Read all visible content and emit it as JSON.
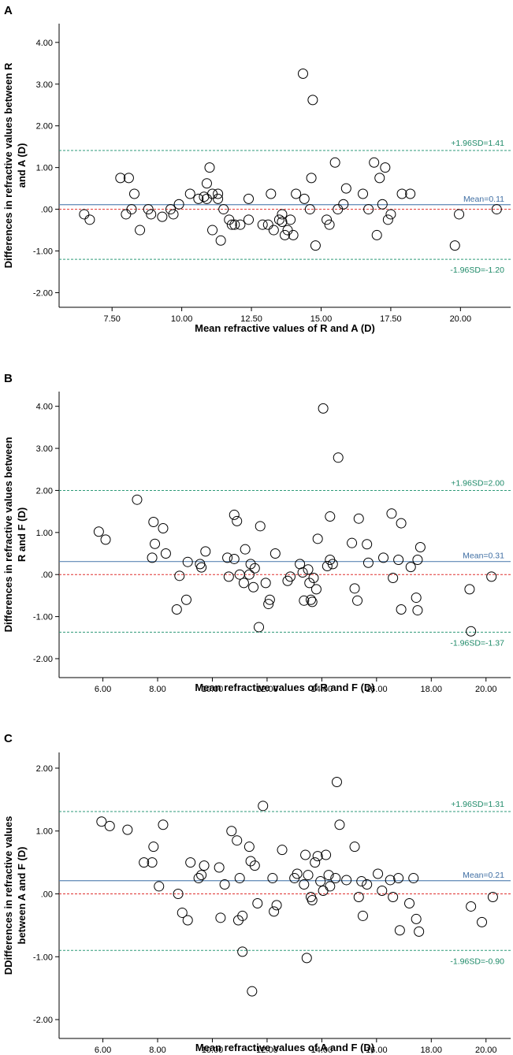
{
  "chart_data": [
    {
      "type": "scatter",
      "panel_label": "A",
      "xlabel": "Mean refractive values of  R and A (D)",
      "ylabel_lines": [
        "Differences in refractive values between R",
        "and A (D)"
      ],
      "xlim": [
        5.6,
        21.8
      ],
      "ylim": [
        -2.35,
        4.45
      ],
      "xticks": [
        7.5,
        10.0,
        12.5,
        15.0,
        17.5,
        20.0
      ],
      "xtick_labels": [
        "7.50",
        "10.00",
        "12.50",
        "15.00",
        "17.50",
        "20.00"
      ],
      "yticks": [
        4,
        3,
        2,
        1,
        0,
        -1,
        -2
      ],
      "ytick_labels": [
        "4.00",
        "3.00",
        "2.00",
        "1.00",
        ".00",
        "-1.00",
        "-2.00"
      ],
      "mean": 0.11,
      "upper": 1.41,
      "lower": -1.2,
      "mean_label": "Mean=0.11",
      "upper_label": "+1.96SD=1.41",
      "lower_label": "-1.96SD=-1.20",
      "points": [
        [
          6.5,
          -0.12
        ],
        [
          6.7,
          -0.25
        ],
        [
          7.8,
          0.75
        ],
        [
          8.0,
          -0.12
        ],
        [
          8.1,
          0.75
        ],
        [
          8.2,
          0.0
        ],
        [
          8.3,
          0.37
        ],
        [
          8.5,
          -0.5
        ],
        [
          8.8,
          0.0
        ],
        [
          8.9,
          -0.12
        ],
        [
          9.3,
          -0.18
        ],
        [
          9.6,
          0.0
        ],
        [
          9.7,
          -0.12
        ],
        [
          9.9,
          0.12
        ],
        [
          10.3,
          0.37
        ],
        [
          10.6,
          0.25
        ],
        [
          10.8,
          0.3
        ],
        [
          10.9,
          0.25
        ],
        [
          10.9,
          0.62
        ],
        [
          11.0,
          1.0
        ],
        [
          11.1,
          0.37
        ],
        [
          11.1,
          -0.5
        ],
        [
          11.3,
          0.37
        ],
        [
          11.3,
          0.25
        ],
        [
          11.4,
          -0.75
        ],
        [
          11.5,
          0.0
        ],
        [
          11.7,
          -0.25
        ],
        [
          11.8,
          -0.37
        ],
        [
          11.9,
          -0.37
        ],
        [
          12.1,
          -0.37
        ],
        [
          12.4,
          0.25
        ],
        [
          12.4,
          -0.25
        ],
        [
          12.9,
          -0.37
        ],
        [
          13.1,
          -0.37
        ],
        [
          13.2,
          0.37
        ],
        [
          13.3,
          -0.5
        ],
        [
          13.5,
          -0.25
        ],
        [
          13.6,
          -0.12
        ],
        [
          13.6,
          -0.3
        ],
        [
          13.7,
          -0.62
        ],
        [
          13.8,
          -0.5
        ],
        [
          13.9,
          -0.25
        ],
        [
          14.0,
          -0.62
        ],
        [
          14.1,
          0.37
        ],
        [
          14.35,
          3.25
        ],
        [
          14.4,
          0.25
        ],
        [
          14.6,
          0.0
        ],
        [
          14.65,
          0.75
        ],
        [
          14.7,
          2.62
        ],
        [
          14.8,
          -0.87
        ],
        [
          15.2,
          -0.25
        ],
        [
          15.3,
          -0.37
        ],
        [
          15.5,
          1.12
        ],
        [
          15.6,
          0.0
        ],
        [
          15.8,
          0.12
        ],
        [
          15.9,
          0.5
        ],
        [
          16.5,
          0.37
        ],
        [
          16.7,
          0.0
        ],
        [
          16.9,
          1.12
        ],
        [
          17.0,
          -0.62
        ],
        [
          17.1,
          0.75
        ],
        [
          17.2,
          0.12
        ],
        [
          17.3,
          1.0
        ],
        [
          17.4,
          -0.25
        ],
        [
          17.5,
          -0.12
        ],
        [
          17.9,
          0.37
        ],
        [
          18.2,
          0.37
        ],
        [
          19.8,
          -0.87
        ],
        [
          19.95,
          -0.12
        ],
        [
          21.3,
          0.0
        ]
      ]
    },
    {
      "type": "scatter",
      "panel_label": "B",
      "xlabel": "Mean refractive values of  R and F (D)",
      "ylabel_lines": [
        "Differences in refractive values between",
        "R and F (D)"
      ],
      "xlim": [
        4.4,
        20.9
      ],
      "ylim": [
        -2.45,
        4.35
      ],
      "xticks": [
        6,
        8,
        10,
        12,
        14,
        16,
        18,
        20
      ],
      "xtick_labels": [
        "6.00",
        "8.00",
        "10.00",
        "12.00",
        "14.00",
        "16.00",
        "18.00",
        "20.00"
      ],
      "yticks": [
        4,
        3,
        2,
        1,
        0,
        -1,
        -2
      ],
      "ytick_labels": [
        "4.00",
        "3.00",
        "2.00",
        "1.00",
        ".00",
        "-1.00",
        "-2.00"
      ],
      "mean": 0.31,
      "upper": 2.0,
      "lower": -1.37,
      "mean_label": "Mean=0.31",
      "upper_label": "+1.96SD=2.00",
      "lower_label": "-1.96SD=-1.37",
      "points": [
        [
          5.85,
          1.02
        ],
        [
          6.1,
          0.83
        ],
        [
          7.25,
          1.78
        ],
        [
          7.8,
          0.4
        ],
        [
          7.85,
          1.25
        ],
        [
          7.9,
          0.73
        ],
        [
          8.2,
          1.1
        ],
        [
          8.3,
          0.5
        ],
        [
          8.7,
          -0.83
        ],
        [
          8.8,
          -0.03
        ],
        [
          9.1,
          0.3
        ],
        [
          9.05,
          -0.6
        ],
        [
          9.55,
          0.25
        ],
        [
          9.6,
          0.17
        ],
        [
          9.75,
          0.55
        ],
        [
          10.55,
          0.4
        ],
        [
          10.6,
          -0.05
        ],
        [
          10.8,
          0.37
        ],
        [
          10.8,
          1.42
        ],
        [
          10.9,
          1.27
        ],
        [
          11.0,
          0.0
        ],
        [
          11.15,
          -0.2
        ],
        [
          11.2,
          0.6
        ],
        [
          11.35,
          0.0
        ],
        [
          11.4,
          0.25
        ],
        [
          11.5,
          -0.3
        ],
        [
          11.55,
          0.15
        ],
        [
          11.75,
          1.15
        ],
        [
          11.7,
          -1.25
        ],
        [
          11.95,
          -0.2
        ],
        [
          12.05,
          -0.7
        ],
        [
          12.1,
          -0.6
        ],
        [
          12.3,
          0.5
        ],
        [
          12.75,
          -0.15
        ],
        [
          12.85,
          -0.05
        ],
        [
          13.2,
          0.25
        ],
        [
          13.3,
          0.05
        ],
        [
          13.35,
          -0.62
        ],
        [
          13.5,
          0.12
        ],
        [
          13.55,
          -0.2
        ],
        [
          13.6,
          -0.6
        ],
        [
          13.65,
          -0.65
        ],
        [
          13.7,
          -0.08
        ],
        [
          13.8,
          -0.35
        ],
        [
          13.85,
          0.85
        ],
        [
          14.05,
          3.95
        ],
        [
          14.2,
          0.2
        ],
        [
          14.3,
          1.38
        ],
        [
          14.3,
          0.35
        ],
        [
          14.4,
          0.25
        ],
        [
          14.6,
          2.78
        ],
        [
          15.1,
          0.75
        ],
        [
          15.2,
          -0.33
        ],
        [
          15.35,
          1.33
        ],
        [
          15.3,
          -0.62
        ],
        [
          15.65,
          0.72
        ],
        [
          15.7,
          0.28
        ],
        [
          16.25,
          0.4
        ],
        [
          16.55,
          1.45
        ],
        [
          16.6,
          -0.08
        ],
        [
          16.8,
          0.35
        ],
        [
          16.9,
          1.22
        ],
        [
          16.9,
          -0.83
        ],
        [
          17.25,
          0.18
        ],
        [
          17.45,
          -0.55
        ],
        [
          17.5,
          -0.85
        ],
        [
          17.5,
          0.35
        ],
        [
          17.6,
          0.65
        ],
        [
          19.4,
          -0.35
        ],
        [
          19.45,
          -1.35
        ],
        [
          20.2,
          -0.05
        ]
      ]
    },
    {
      "type": "scatter",
      "panel_label": "C",
      "xlabel": "Mean refractive values of A and F (D)",
      "ylabel_lines": [
        "DDifferences in refractive values",
        "between A and F (D)"
      ],
      "xlim": [
        4.4,
        20.9
      ],
      "ylim": [
        -2.3,
        2.25
      ],
      "xticks": [
        6,
        8,
        10,
        12,
        14,
        16,
        18,
        20
      ],
      "xtick_labels": [
        "6.00",
        "8.00",
        "10.00",
        "12.00",
        "14.00",
        "16.00",
        "18.00",
        "20.00"
      ],
      "yticks": [
        2,
        1,
        0,
        -1,
        -2
      ],
      "ytick_labels": [
        "2.00",
        "1.00",
        ".00",
        "-1.00",
        "-2.00"
      ],
      "mean": 0.21,
      "upper": 1.31,
      "lower": -0.9,
      "mean_label": "Mean=0.21",
      "upper_label": "+1.96SD=1.31",
      "lower_label": "-1.96SD=-0.90",
      "points": [
        [
          5.95,
          1.15
        ],
        [
          6.25,
          1.08
        ],
        [
          6.9,
          1.02
        ],
        [
          7.5,
          0.5
        ],
        [
          7.8,
          0.5
        ],
        [
          7.85,
          0.75
        ],
        [
          8.05,
          0.12
        ],
        [
          8.2,
          1.1
        ],
        [
          8.75,
          0.0
        ],
        [
          8.9,
          -0.3
        ],
        [
          9.1,
          -0.42
        ],
        [
          9.2,
          0.5
        ],
        [
          9.5,
          0.25
        ],
        [
          9.6,
          0.3
        ],
        [
          9.7,
          0.45
        ],
        [
          10.25,
          0.42
        ],
        [
          10.3,
          -0.38
        ],
        [
          10.45,
          0.15
        ],
        [
          10.7,
          1.0
        ],
        [
          10.9,
          0.85
        ],
        [
          10.95,
          -0.42
        ],
        [
          11.0,
          0.25
        ],
        [
          11.1,
          -0.35
        ],
        [
          11.1,
          -0.92
        ],
        [
          11.35,
          0.75
        ],
        [
          11.4,
          0.52
        ],
        [
          11.45,
          -1.55
        ],
        [
          11.55,
          0.45
        ],
        [
          11.65,
          -0.15
        ],
        [
          11.85,
          1.4
        ],
        [
          12.2,
          0.25
        ],
        [
          12.25,
          -0.28
        ],
        [
          12.35,
          -0.18
        ],
        [
          12.55,
          0.7
        ],
        [
          13.0,
          0.25
        ],
        [
          13.1,
          0.32
        ],
        [
          13.35,
          0.15
        ],
        [
          13.4,
          0.62
        ],
        [
          13.45,
          -1.02
        ],
        [
          13.5,
          0.3
        ],
        [
          13.6,
          -0.05
        ],
        [
          13.65,
          -0.1
        ],
        [
          13.75,
          0.5
        ],
        [
          13.85,
          0.6
        ],
        [
          13.95,
          0.2
        ],
        [
          14.05,
          0.05
        ],
        [
          14.15,
          0.62
        ],
        [
          14.25,
          0.3
        ],
        [
          14.3,
          0.12
        ],
        [
          14.5,
          0.25
        ],
        [
          14.55,
          1.78
        ],
        [
          14.65,
          1.1
        ],
        [
          14.9,
          0.22
        ],
        [
          15.2,
          0.75
        ],
        [
          15.35,
          -0.05
        ],
        [
          15.45,
          0.2
        ],
        [
          15.5,
          -0.35
        ],
        [
          15.65,
          0.15
        ],
        [
          16.05,
          0.32
        ],
        [
          16.2,
          0.05
        ],
        [
          16.5,
          0.22
        ],
        [
          16.6,
          -0.05
        ],
        [
          16.8,
          0.25
        ],
        [
          16.85,
          -0.58
        ],
        [
          17.2,
          -0.15
        ],
        [
          17.35,
          0.25
        ],
        [
          17.45,
          -0.4
        ],
        [
          17.55,
          -0.6
        ],
        [
          19.45,
          -0.2
        ],
        [
          19.85,
          -0.45
        ],
        [
          20.25,
          -0.05
        ]
      ]
    }
  ]
}
